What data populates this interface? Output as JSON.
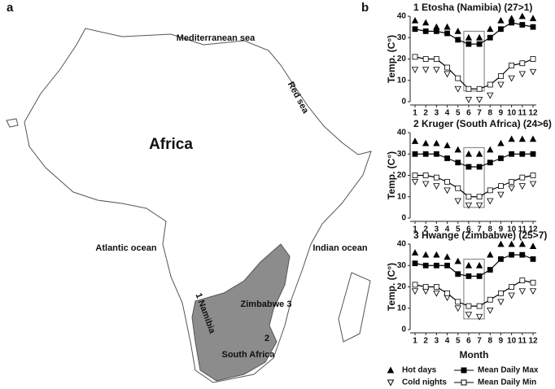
{
  "panels": [
    "a",
    "b"
  ],
  "map": {
    "labels": [
      "Mediterranean sea",
      "Red sea",
      "Africa",
      "Atlantic ocean",
      "Indian ocean",
      "1 Namibia",
      "Zimbabwe 3",
      "2",
      "South Africa"
    ]
  },
  "chart_data": [
    {
      "type": "line",
      "title": "1 Etosha (Namibia) (27>1)",
      "ylabel": "Temp. (C°)",
      "x": [
        1,
        2,
        3,
        4,
        5,
        6,
        7,
        8,
        9,
        10,
        11,
        12
      ],
      "xlim": [
        1,
        12
      ],
      "xticks": [
        1,
        2,
        3,
        4,
        5,
        6,
        7,
        8,
        9,
        10,
        11,
        12
      ],
      "ylim": [
        0,
        40
      ],
      "yticks": [
        0,
        10,
        20,
        30,
        40
      ],
      "series": [
        {
          "name": "Hot days",
          "marker": "triangle-up",
          "filled": true,
          "line": false,
          "color": "#000000",
          "values": [
            38,
            37,
            35,
            35,
            33,
            30,
            30,
            34,
            38,
            39,
            40,
            39
          ]
        },
        {
          "name": "Cold nights",
          "marker": "triangle-down",
          "filled": false,
          "line": false,
          "color": "#000000",
          "values": [
            15,
            15,
            15,
            13,
            6,
            1,
            1,
            3,
            8,
            11,
            13,
            14
          ]
        },
        {
          "name": "Mean Daily Max",
          "marker": "square",
          "filled": true,
          "line": true,
          "color": "#000000",
          "values": [
            34,
            33,
            33,
            32,
            29,
            27,
            27,
            30,
            34,
            37,
            36,
            35
          ]
        },
        {
          "name": "Mean Daily Min",
          "marker": "square",
          "filled": false,
          "line": true,
          "color": "#000000",
          "values": [
            21,
            20,
            20,
            16,
            11,
            6,
            6,
            8,
            12,
            17,
            18,
            20
          ]
        }
      ]
    },
    {
      "type": "line",
      "title": "2 Kruger (South Africa) (24>6)",
      "ylabel": "Temp. (C°)",
      "x": [
        1,
        2,
        3,
        4,
        5,
        6,
        7,
        8,
        9,
        10,
        11,
        12
      ],
      "xlim": [
        1,
        12
      ],
      "xticks": [
        1,
        2,
        3,
        4,
        5,
        6,
        7,
        8,
        9,
        10,
        11,
        12
      ],
      "ylim": [
        0,
        40
      ],
      "yticks": [
        0,
        10,
        20,
        30,
        40
      ],
      "series": [
        {
          "marker": "triangle-up",
          "filled": true,
          "line": false,
          "color": "#000000",
          "values": [
            36,
            35,
            35,
            34,
            32,
            30,
            30,
            32,
            35,
            37,
            37,
            37
          ]
        },
        {
          "marker": "triangle-down",
          "filled": false,
          "line": false,
          "color": "#000000",
          "values": [
            17,
            16,
            15,
            13,
            8,
            6,
            6,
            8,
            11,
            14,
            15,
            16
          ]
        },
        {
          "marker": "square",
          "filled": true,
          "line": true,
          "color": "#000000",
          "values": [
            30,
            30,
            30,
            28,
            26,
            24,
            24,
            26,
            28,
            30,
            30,
            30
          ]
        },
        {
          "marker": "square",
          "filled": false,
          "line": true,
          "color": "#000000",
          "values": [
            20,
            20,
            19,
            17,
            14,
            10,
            10,
            13,
            15,
            17,
            19,
            20
          ]
        }
      ]
    },
    {
      "type": "line",
      "title": "3 Hwange (Zimbabwe) (25>7)",
      "ylabel": "Temp. (C°)",
      "xlabel": "Month",
      "x": [
        1,
        2,
        3,
        4,
        5,
        6,
        7,
        8,
        9,
        10,
        11,
        12
      ],
      "xlim": [
        1,
        12
      ],
      "xticks": [
        1,
        2,
        3,
        4,
        5,
        6,
        7,
        8,
        9,
        10,
        11,
        12
      ],
      "ylim": [
        0,
        40
      ],
      "yticks": [
        0,
        10,
        20,
        30,
        40
      ],
      "series": [
        {
          "marker": "triangle-up",
          "filled": true,
          "line": false,
          "color": "#000000",
          "values": [
            36,
            35,
            35,
            34,
            32,
            30,
            30,
            35,
            40,
            40,
            40,
            39
          ]
        },
        {
          "marker": "triangle-down",
          "filled": false,
          "line": false,
          "color": "#000000",
          "values": [
            18,
            18,
            17,
            15,
            10,
            7,
            6,
            9,
            13,
            16,
            18,
            18
          ]
        },
        {
          "marker": "square",
          "filled": true,
          "line": true,
          "color": "#000000",
          "values": [
            31,
            30,
            30,
            30,
            26,
            25,
            25,
            28,
            33,
            35,
            35,
            33
          ]
        },
        {
          "marker": "square",
          "filled": false,
          "line": true,
          "color": "#000000",
          "values": [
            21,
            20,
            20,
            17,
            13,
            11,
            11,
            14,
            17,
            20,
            23,
            22
          ]
        }
      ]
    }
  ]
}
